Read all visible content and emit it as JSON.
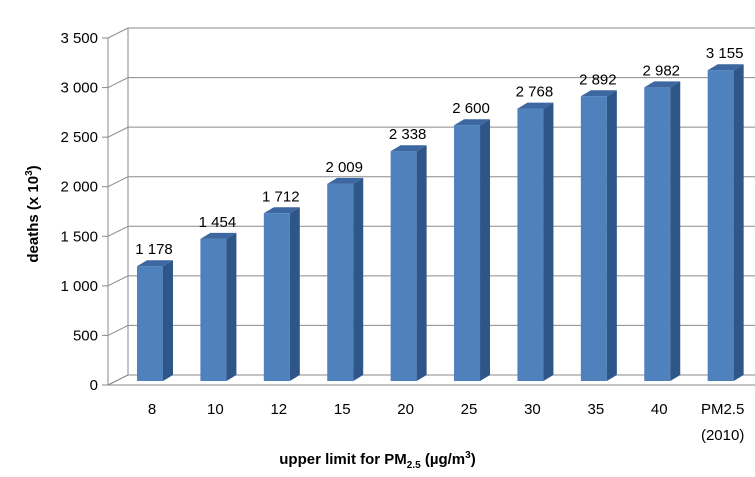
{
  "chart_data": {
    "type": "bar",
    "categories": [
      "8",
      "10",
      "12",
      "15",
      "20",
      "25",
      "30",
      "35",
      "40",
      "PM2.5 (2010)"
    ],
    "values": [
      1178,
      1454,
      1712,
      2009,
      2338,
      2600,
      2768,
      2892,
      2982,
      3155
    ],
    "value_labels": [
      "1 178",
      "1 454",
      "1 712",
      "2 009",
      "2 338",
      "2 600",
      "2 768",
      "2 892",
      "2 982",
      "3 155"
    ],
    "ylim": [
      0,
      3500
    ],
    "yticks": [
      0,
      500,
      1000,
      1500,
      2000,
      2500,
      3000,
      3500
    ],
    "ytick_labels": [
      "0",
      "500",
      "1 000",
      "1 500",
      "2 000",
      "2 500",
      "3 000",
      "3 500"
    ],
    "ylabel": {
      "main": "deaths (x 10",
      "sup": "3",
      "end": ")"
    },
    "xlabel": {
      "main": "upper limit for PM",
      "sub": "2.5",
      "mid": " (µg/m",
      "sup": "3",
      "end": ")"
    },
    "grid": true,
    "bar_color": "#4f81bd",
    "bar_side_color": "#2f5688",
    "bar_top_color": "#3c67a0"
  }
}
